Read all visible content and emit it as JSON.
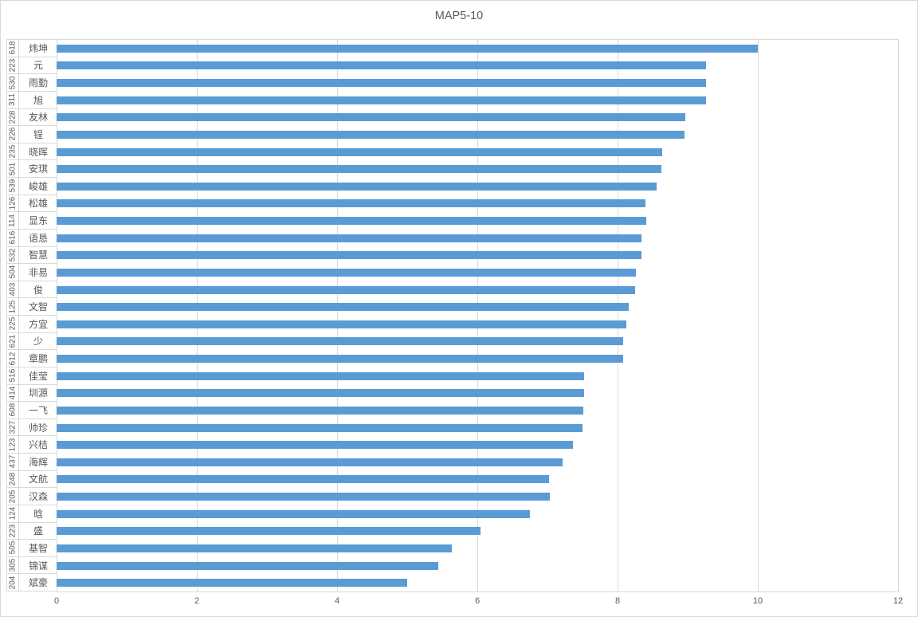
{
  "title": "MAP5-10",
  "colors": {
    "bar": "#5b9bd5",
    "gridline": "#d9d9d9",
    "axis_border": "#d9d9d9",
    "text": "#595959"
  },
  "chart_data": {
    "type": "bar",
    "orientation": "horizontal",
    "title": "MAP5-10",
    "xlabel": "",
    "ylabel": "",
    "xlim": [
      0,
      12
    ],
    "xticks": [
      "0",
      "2",
      "4",
      "6",
      "8",
      "10",
      "12"
    ],
    "grid": true,
    "legend": "none",
    "bar_color": "#5b9bd5",
    "category_codes": [
      "618",
      "223",
      "530",
      "311",
      "228",
      "226",
      "235",
      "501",
      "539",
      "126",
      "114",
      "616",
      "532",
      "504",
      "403",
      "125",
      "225",
      "621",
      "612",
      "516",
      "414",
      "608",
      "327",
      "123",
      "437",
      "248",
      "205",
      "124",
      "223",
      "505",
      "305",
      "204"
    ],
    "categories": [
      "炜坤",
      "元",
      "雨勤",
      "旭",
      "友林",
      "锃",
      "晓晖",
      "安琪",
      "峻雄",
      "松雄",
      "显东",
      "语恳",
      "智慧",
      "非易",
      "俊",
      "文智",
      "方宜",
      "少",
      "章鹏",
      "佳莹",
      "圳源",
      "一飞",
      "帅珍",
      "兴桔",
      "海辉",
      "文航",
      "汉森",
      "晗",
      "盛",
      "基智",
      "锦谋",
      "斌豪"
    ],
    "values": [
      10.0,
      9.26,
      9.26,
      9.26,
      8.96,
      8.95,
      8.64,
      8.62,
      8.56,
      8.4,
      8.41,
      8.34,
      8.34,
      8.26,
      8.25,
      8.16,
      8.12,
      8.08,
      8.08,
      7.52,
      7.52,
      7.51,
      7.5,
      7.36,
      7.21,
      7.02,
      7.03,
      6.75,
      6.05,
      5.64,
      5.44,
      5.0
    ]
  }
}
